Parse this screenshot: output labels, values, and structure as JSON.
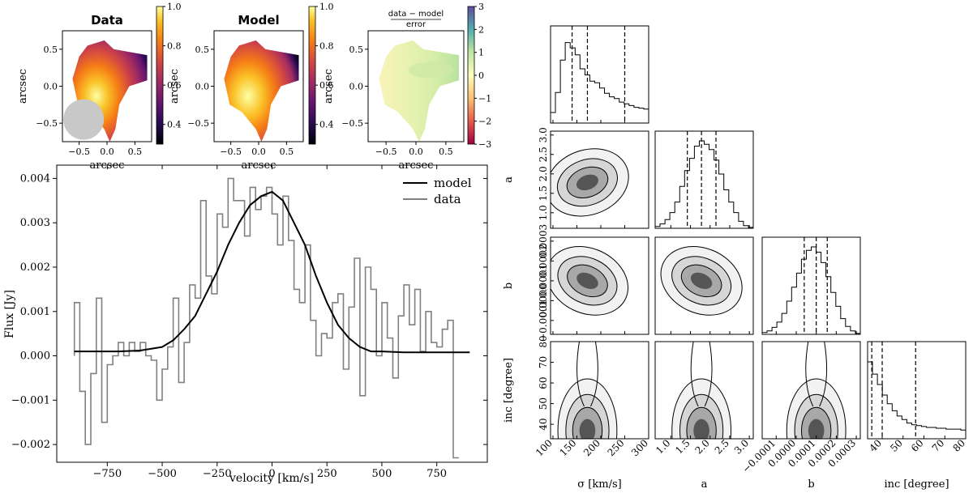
{
  "maps": {
    "panels": [
      {
        "title": "Data",
        "frac": false
      },
      {
        "title": "Model",
        "frac": false
      },
      {
        "title": "",
        "frac": true,
        "numerator": "data − model",
        "denominator": "error"
      }
    ],
    "xlabel": "arcsec",
    "ylabel": "arcsec",
    "xticks": [
      "−0.5",
      "0.0",
      "0.5"
    ],
    "xtick_values": [
      -0.5,
      0.0,
      0.5
    ],
    "yticks": [
      "0.5",
      "0.0",
      "−0.5"
    ],
    "ytick_values": [
      0.5,
      0.0,
      -0.5
    ],
    "xlim": [
      -0.8,
      0.8
    ],
    "ylim": [
      -0.75,
      0.75
    ],
    "colorbar_flux": [
      "1.0",
      "0.8",
      "0.6",
      "0.4"
    ],
    "colorbar_flux_values": [
      1.0,
      0.8,
      0.6,
      0.4
    ],
    "colorbar_flux_range": [
      0.3,
      1.0
    ],
    "colorbar_resid": [
      "3",
      "2",
      "1",
      "0",
      "−1",
      "−2",
      "−3"
    ],
    "colorbar_resid_values": [
      3,
      2,
      1,
      0,
      -1,
      -2,
      -3
    ],
    "colorbar_resid_range": [
      -3,
      3
    ]
  },
  "chart_data": [
    {
      "type": "line",
      "title": "",
      "xlabel": "velocity [km/s]",
      "ylabel": "Flux [Jy]",
      "xlim": [
        -980,
        980
      ],
      "ylim": [
        -0.0024,
        0.0043
      ],
      "xticks": [
        "−750",
        "−500",
        "−250",
        "0",
        "250",
        "500",
        "750"
      ],
      "xtick_values": [
        -750,
        -500,
        -250,
        0,
        250,
        500,
        750
      ],
      "yticks": [
        "0.004",
        "0.003",
        "0.002",
        "0.001",
        "0.000",
        "−0.001",
        "−0.002"
      ],
      "ytick_values": [
        0.004,
        0.003,
        0.002,
        0.001,
        0.0,
        -0.001,
        -0.002
      ],
      "legend_position": "top-right",
      "series": [
        {
          "name": "model",
          "color": "#000000",
          "x": [
            -900,
            -700,
            -600,
            -500,
            -450,
            -400,
            -350,
            -300,
            -250,
            -200,
            -150,
            -100,
            -50,
            0,
            50,
            100,
            150,
            200,
            250,
            300,
            350,
            400,
            450,
            500,
            600,
            700,
            900
          ],
          "values": [
            0.0001,
            0.0001,
            0.00012,
            0.0002,
            0.00035,
            0.0006,
            0.0009,
            0.0014,
            0.0019,
            0.0025,
            0.003,
            0.0034,
            0.0036,
            0.0037,
            0.0035,
            0.003,
            0.0025,
            0.0018,
            0.0012,
            0.0007,
            0.0004,
            0.0002,
            0.0001,
            0.0001,
            8e-05,
            8e-05,
            8e-05
          ]
        },
        {
          "name": "data",
          "color": "#808080",
          "step": true,
          "x": [
            -900,
            -875,
            -850,
            -825,
            -800,
            -775,
            -750,
            -725,
            -700,
            -675,
            -650,
            -625,
            -600,
            -575,
            -550,
            -525,
            -500,
            -475,
            -450,
            -425,
            -400,
            -375,
            -350,
            -325,
            -300,
            -275,
            -250,
            -225,
            -200,
            -175,
            -150,
            -125,
            -100,
            -75,
            -50,
            -25,
            0,
            25,
            50,
            75,
            100,
            125,
            150,
            175,
            200,
            225,
            250,
            275,
            300,
            325,
            350,
            375,
            400,
            425,
            450,
            475,
            500,
            525,
            550,
            575,
            600,
            625,
            650,
            675,
            700,
            725,
            750,
            775,
            800,
            825
          ],
          "values": [
            0.0012,
            -0.0008,
            -0.002,
            -0.0004,
            0.0013,
            -0.0015,
            -0.0002,
            0.0,
            0.0003,
            0.0,
            0.0003,
            0.0001,
            0.0003,
            0.0,
            -0.0001,
            -0.001,
            -0.0003,
            0.0002,
            0.0013,
            -0.0006,
            0.0003,
            0.0016,
            0.0013,
            0.0035,
            0.0018,
            0.0014,
            0.0032,
            0.0029,
            0.004,
            0.0035,
            0.0035,
            0.0027,
            0.0038,
            0.0033,
            0.0036,
            0.0038,
            0.0032,
            0.0025,
            0.0036,
            0.0026,
            0.0015,
            0.0012,
            0.0025,
            0.0008,
            0.0,
            0.0005,
            0.0004,
            0.0012,
            0.0014,
            -0.0003,
            0.0011,
            0.0022,
            -0.0009,
            0.002,
            0.0015,
            0.0,
            0.0012,
            0.0004,
            -0.0005,
            0.0009,
            0.0016,
            0.0007,
            0.0015,
            0.0001,
            0.001,
            0.0003,
            0.0002,
            0.0006,
            0.0008,
            -0.0023
          ]
        }
      ]
    },
    {
      "type": "corner",
      "title": "",
      "params": [
        "σ [km/s]",
        "a",
        "b",
        "inc [degree]"
      ],
      "ranges": [
        [
          95,
          300
        ],
        [
          0.6,
          3.1
        ],
        [
          -0.00017,
          0.00032
        ],
        [
          33,
          80
        ]
      ],
      "ticks": [
        {
          "labels": [
            "100",
            "150",
            "200",
            "250",
            "300"
          ],
          "values": [
            100,
            150,
            200,
            250,
            300
          ]
        },
        {
          "labels": [
            "1.0",
            "1.5",
            "2.0",
            "2.5",
            "3.0"
          ],
          "values": [
            1.0,
            1.5,
            2.0,
            2.5,
            3.0
          ]
        },
        {
          "labels": [
            "−0.0001",
            "0.0000",
            "0.0001",
            "0.0002",
            "0.0003"
          ],
          "values": [
            -0.0001,
            0.0,
            0.0001,
            0.0002,
            0.0003
          ]
        },
        {
          "labels": [
            "40",
            "50",
            "60",
            "70",
            "80"
          ],
          "values": [
            40,
            50,
            60,
            70,
            80
          ]
        }
      ],
      "yticks": [
        null,
        {
          "labels": [
            "3.0",
            "2.5",
            "2.0",
            "1.5",
            "1.0"
          ],
          "values": [
            3.0,
            2.5,
            2.0,
            1.5,
            1.0
          ]
        },
        {
          "labels": [
            "0.0003",
            "0.0002",
            "0.0001",
            "0.0000",
            "−0.0001"
          ],
          "values": [
            0.0003,
            0.0002,
            0.0001,
            0.0,
            -0.0001
          ]
        },
        {
          "labels": [
            "80",
            "70",
            "60",
            "50",
            "40"
          ],
          "values": [
            80,
            70,
            60,
            50,
            40
          ]
        }
      ],
      "quantiles": [
        [
          140,
          172,
          250
        ],
        [
          1.42,
          1.78,
          2.15
        ],
        [
          4e-05,
          0.0001,
          0.000155
        ],
        [
          35,
          40,
          56
        ]
      ],
      "histograms": [
        [
          0.12,
          0.35,
          0.72,
          0.92,
          0.86,
          0.78,
          0.62,
          0.55,
          0.48,
          0.46,
          0.4,
          0.34,
          0.3,
          0.28,
          0.24,
          0.22,
          0.2,
          0.18,
          0.17,
          0.16
        ],
        [
          0.02,
          0.05,
          0.1,
          0.18,
          0.3,
          0.48,
          0.66,
          0.8,
          0.94,
          1.0,
          0.96,
          0.9,
          0.78,
          0.62,
          0.44,
          0.3,
          0.18,
          0.08,
          0.03,
          0.01
        ],
        [
          0.02,
          0.04,
          0.08,
          0.14,
          0.24,
          0.38,
          0.54,
          0.7,
          0.86,
          0.96,
          1.0,
          0.94,
          0.82,
          0.66,
          0.48,
          0.32,
          0.18,
          0.09,
          0.04,
          0.01
        ],
        [
          0.88,
          0.74,
          0.62,
          0.5,
          0.4,
          0.32,
          0.26,
          0.22,
          0.18,
          0.16,
          0.15,
          0.14,
          0.13,
          0.13,
          0.12,
          0.12,
          0.11,
          0.11,
          0.11,
          0.1
        ]
      ]
    }
  ]
}
